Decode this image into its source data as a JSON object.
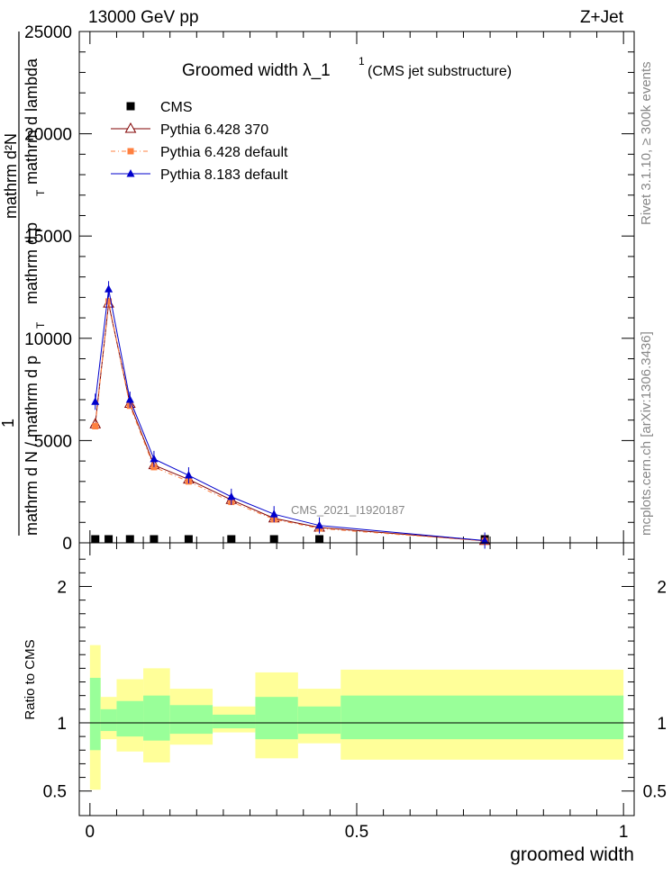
{
  "header": {
    "left": "13000 GeV pp",
    "right": "Z+Jet"
  },
  "side": {
    "rivet": "Rivet 3.1.10, ≥ 300k events",
    "mcplots": "mcplots.cern.ch [arXiv:1306.3436]"
  },
  "analysis_label": "CMS_2021_I1920187",
  "chart_data": [
    {
      "type": "line",
      "title": "Groomed width  λ_1",
      "title_superscript": "1",
      "subtitle": "(CMS jet substructure)",
      "ylabel_numerator": "1",
      "ylabel_lines": [
        "mathrm d²N",
        "mathrm d p",
        "T",
        "mathrm d lambda"
      ],
      "ylabel_denominator": "mathrm d N / mathrm d p",
      "ylabel_denominator_sub": "T",
      "ylim": [
        0,
        25000
      ],
      "yticks": [
        0,
        5000,
        10000,
        15000,
        20000,
        25000
      ],
      "ytick_labels": [
        "0",
        "5000",
        "10000",
        "15000",
        "20000",
        "25000"
      ],
      "xlim": [
        -0.02,
        1.02
      ],
      "legend_position": "top-left",
      "series": [
        {
          "name": "CMS",
          "color": "#000000",
          "marker": "square",
          "x": [
            0.01,
            0.035,
            0.075,
            0.12,
            0.185,
            0.265,
            0.345,
            0.43,
            0.74
          ],
          "y": [
            0,
            0,
            0,
            0,
            0,
            0,
            0,
            0,
            0
          ]
        },
        {
          "name": "Pythia 6.428 370",
          "color": "#800000",
          "marker": "open-triangle",
          "x": [
            0.01,
            0.035,
            0.075,
            0.12,
            0.185,
            0.265,
            0.345,
            0.43,
            0.74
          ],
          "y": [
            5800,
            11700,
            6800,
            3800,
            3100,
            2100,
            1200,
            750,
            100
          ]
        },
        {
          "name": "Pythia 6.428 default",
          "color": "#ff8040",
          "marker": "square",
          "x": [
            0.01,
            0.035,
            0.075,
            0.12,
            0.185,
            0.265,
            0.345,
            0.43,
            0.74
          ],
          "y": [
            5700,
            11800,
            6700,
            3700,
            3000,
            2000,
            1150,
            700,
            90
          ]
        },
        {
          "name": "Pythia 8.183 default",
          "color": "#0000cc",
          "marker": "triangle",
          "x": [
            0.01,
            0.035,
            0.075,
            0.12,
            0.185,
            0.265,
            0.345,
            0.43,
            0.74
          ],
          "y": [
            6900,
            12400,
            7000,
            4100,
            3300,
            2250,
            1400,
            850,
            110
          ]
        }
      ]
    },
    {
      "type": "area",
      "ylabel": "Ratio to CMS",
      "xlabel": "groomed width",
      "ylim": [
        0.32,
        2.32
      ],
      "yticks": [
        0.5,
        1,
        2
      ],
      "ytick_labels": [
        "0.5",
        "1",
        "2"
      ],
      "xlim": [
        -0.02,
        1.02
      ],
      "xticks": [
        0,
        0.5,
        1
      ],
      "xtick_labels": [
        "0",
        "0.5",
        "1"
      ],
      "bins": [
        {
          "lo": 0.0,
          "hi": 0.02,
          "stat_lo": 0.8,
          "stat_hi": 1.33,
          "tot_lo": 0.51,
          "tot_hi": 1.57
        },
        {
          "lo": 0.02,
          "hi": 0.05,
          "stat_lo": 0.94,
          "stat_hi": 1.1,
          "tot_lo": 0.88,
          "tot_hi": 1.19
        },
        {
          "lo": 0.05,
          "hi": 0.1,
          "stat_lo": 0.9,
          "stat_hi": 1.16,
          "tot_lo": 0.79,
          "tot_hi": 1.32
        },
        {
          "lo": 0.1,
          "hi": 0.15,
          "stat_lo": 0.87,
          "stat_hi": 1.2,
          "tot_lo": 0.71,
          "tot_hi": 1.4
        },
        {
          "lo": 0.15,
          "hi": 0.23,
          "stat_lo": 0.92,
          "stat_hi": 1.13,
          "tot_lo": 0.84,
          "tot_hi": 1.25
        },
        {
          "lo": 0.23,
          "hi": 0.31,
          "stat_lo": 0.96,
          "stat_hi": 1.06,
          "tot_lo": 0.93,
          "tot_hi": 1.12
        },
        {
          "lo": 0.31,
          "hi": 0.39,
          "stat_lo": 0.88,
          "stat_hi": 1.19,
          "tot_lo": 0.74,
          "tot_hi": 1.37
        },
        {
          "lo": 0.39,
          "hi": 0.47,
          "stat_lo": 0.92,
          "stat_hi": 1.12,
          "tot_lo": 0.85,
          "tot_hi": 1.25
        },
        {
          "lo": 0.47,
          "hi": 1.0,
          "stat_lo": 0.88,
          "stat_hi": 1.2,
          "tot_lo": 0.73,
          "tot_hi": 1.39
        }
      ],
      "colors": {
        "stat": "#99ff99",
        "total": "#ffff99",
        "reference_line": "#000000"
      }
    }
  ]
}
